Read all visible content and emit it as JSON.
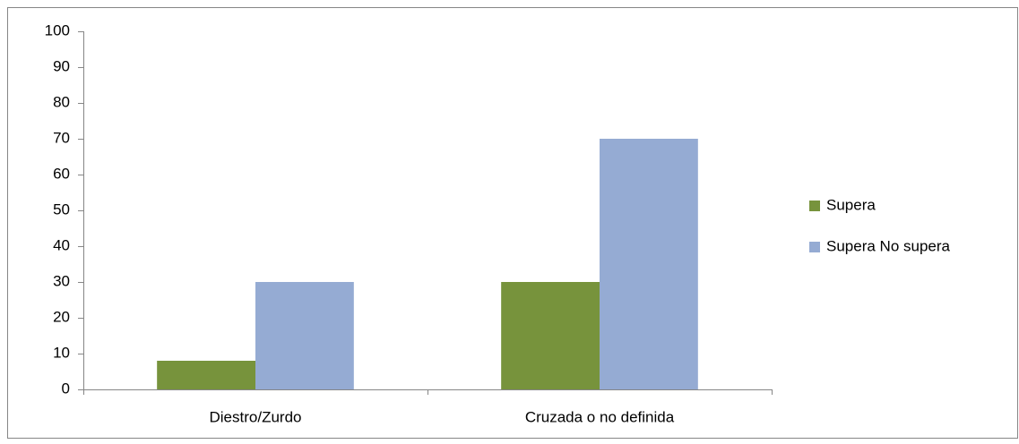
{
  "chart_data": {
    "type": "bar",
    "categories": [
      "Diestro/Zurdo",
      "Cruzada o no definida"
    ],
    "series": [
      {
        "name": "Supera",
        "color": "#77933c",
        "values": [
          8,
          30
        ]
      },
      {
        "name": "Supera No supera",
        "color": "#95abd3",
        "values": [
          30,
          70
        ]
      }
    ],
    "ylim": [
      0,
      100
    ],
    "yticks": [
      0,
      10,
      20,
      30,
      40,
      50,
      60,
      70,
      80,
      90,
      100
    ],
    "grid": false,
    "legend": "right"
  }
}
